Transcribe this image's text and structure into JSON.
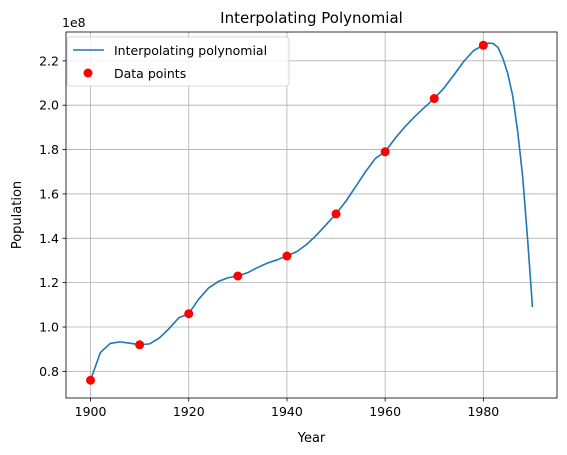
{
  "chart_data": {
    "type": "line",
    "title": "Interpolating Polynomial",
    "xlabel": "Year",
    "ylabel": "Population",
    "offset_text": "1e8",
    "xlim": [
      1895,
      1995
    ],
    "ylim": [
      68000000,
      233000000
    ],
    "x_ticks": [
      1900,
      1920,
      1940,
      1960,
      1980
    ],
    "x_tick_labels": [
      "1900",
      "1920",
      "1940",
      "1960",
      "1980"
    ],
    "y_ticks": [
      80000000,
      100000000,
      120000000,
      140000000,
      160000000,
      180000000,
      200000000,
      220000000
    ],
    "y_tick_labels": [
      "0.8",
      "1.0",
      "1.2",
      "1.4",
      "1.6",
      "1.8",
      "2.0",
      "2.2"
    ],
    "grid": true,
    "legend_position": "top-left",
    "series": [
      {
        "name": "Interpolating polynomial",
        "kind": "line",
        "color": "#1f77b4",
        "x": [
          1900,
          1902,
          1904,
          1906,
          1908,
          1910,
          1912,
          1914,
          1916,
          1918,
          1920,
          1922,
          1924,
          1926,
          1928,
          1930,
          1932,
          1934,
          1936,
          1938,
          1940,
          1942,
          1944,
          1946,
          1948,
          1950,
          1952,
          1954,
          1956,
          1958,
          1960,
          1962,
          1964,
          1966,
          1968,
          1970,
          1972,
          1974,
          1976,
          1978,
          1980,
          1981,
          1982,
          1983,
          1984,
          1985,
          1986,
          1987,
          1988,
          1989,
          1990
        ],
        "y": [
          76000000,
          88500000,
          92600000,
          93300000,
          92700000,
          92000000,
          92400000,
          95000000,
          99300000,
          104200000,
          106000000,
          112500000,
          117500000,
          120500000,
          122200000,
          123000000,
          124500000,
          126800000,
          128800000,
          130300000,
          132000000,
          134000000,
          137200000,
          141400000,
          146200000,
          151000000,
          156700000,
          163300000,
          170000000,
          176000000,
          179000000,
          185000000,
          190200000,
          194800000,
          199000000,
          203000000,
          207800000,
          213600000,
          219700000,
          224600000,
          227000000,
          228000000,
          227800000,
          226000000,
          221000000,
          214000000,
          204000000,
          188000000,
          168000000,
          140000000,
          109000000
        ]
      },
      {
        "name": "Data points",
        "kind": "scatter",
        "color": "#ff0000",
        "x": [
          1900,
          1910,
          1920,
          1930,
          1940,
          1950,
          1960,
          1970,
          1980
        ],
        "y": [
          76000000,
          92000000,
          106000000,
          123000000,
          132000000,
          151000000,
          179000000,
          203000000,
          227000000
        ]
      }
    ]
  }
}
